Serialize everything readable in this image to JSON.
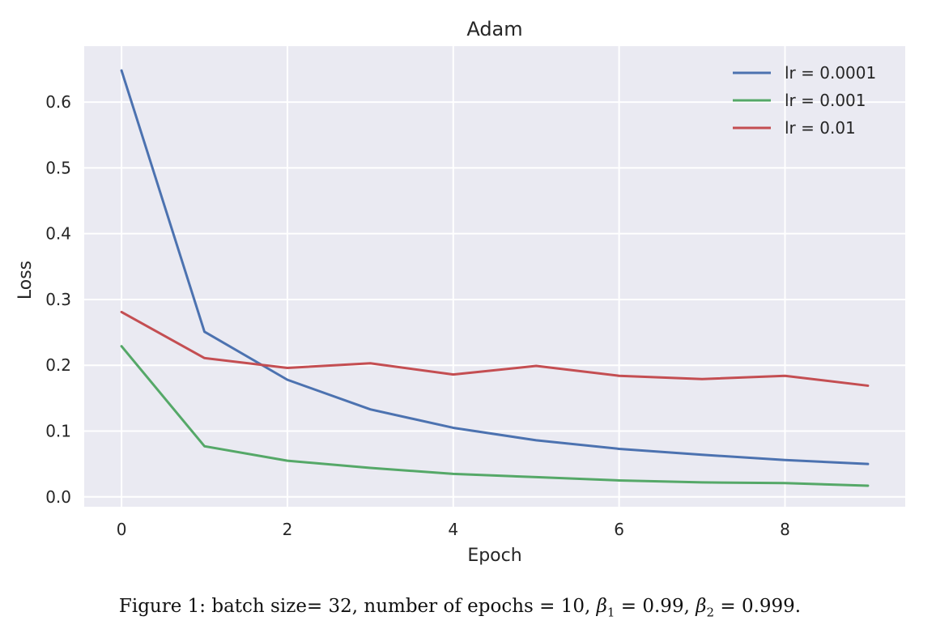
{
  "chart_data": {
    "type": "line",
    "title": "Adam",
    "xlabel": "Epoch",
    "ylabel": "Loss",
    "xlim": [
      -0.45,
      9.45
    ],
    "ylim": [
      -0.015,
      0.685
    ],
    "xticks": [
      0,
      2,
      4,
      6,
      8
    ],
    "yticks": [
      0.0,
      0.1,
      0.2,
      0.3,
      0.4,
      0.5,
      0.6
    ],
    "grid": true,
    "legend_position": "top-right",
    "x": [
      0,
      1,
      2,
      3,
      4,
      5,
      6,
      7,
      8,
      9
    ],
    "series": [
      {
        "name": "lr = 0.0001",
        "color": "#4c72b0",
        "values": [
          0.648,
          0.251,
          0.178,
          0.133,
          0.105,
          0.086,
          0.073,
          0.064,
          0.056,
          0.05
        ]
      },
      {
        "name": "lr = 0.001",
        "color": "#55a868",
        "values": [
          0.229,
          0.077,
          0.055,
          0.044,
          0.035,
          0.03,
          0.025,
          0.022,
          0.021,
          0.017
        ]
      },
      {
        "name": "lr = 0.01",
        "color": "#c44e52",
        "values": [
          0.281,
          0.211,
          0.196,
          0.203,
          0.186,
          0.199,
          0.184,
          0.179,
          0.184,
          0.169
        ]
      }
    ]
  },
  "caption": {
    "prefix": "Figure 1:",
    "text": "batch size= 32, number of epochs = 10,",
    "beta1_symbol": "β",
    "beta1_sub": "1",
    "beta1_value": " = 0.99,",
    "beta2_symbol": "β",
    "beta2_sub": "2",
    "beta2_value": " = 0.999."
  }
}
